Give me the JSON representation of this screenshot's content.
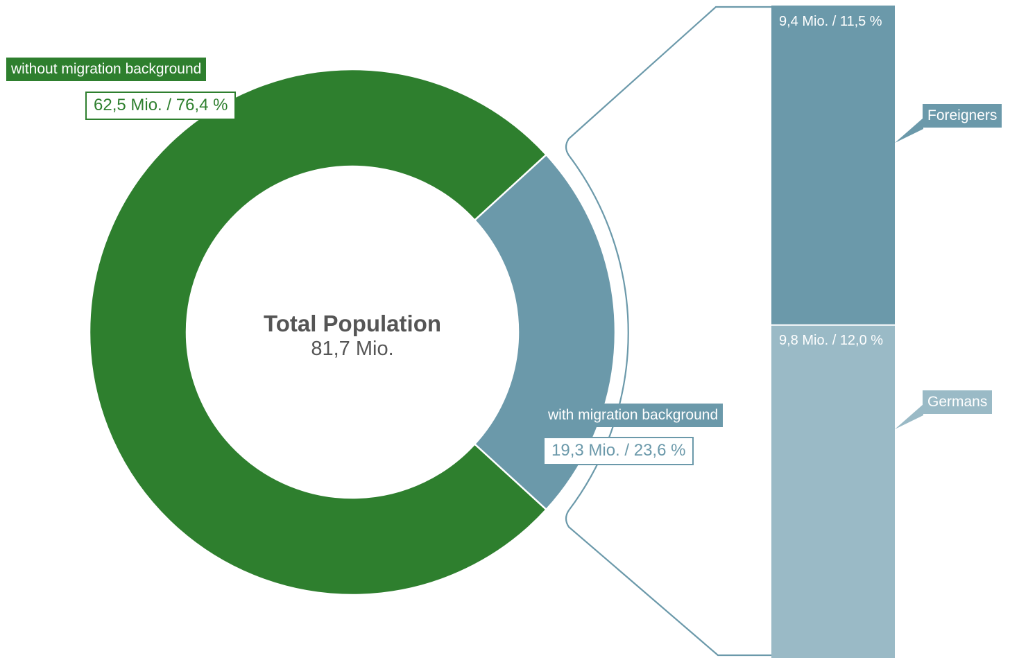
{
  "chart_data": {
    "type": "pie",
    "center_label": {
      "title": "Total Population",
      "value": "81,7 Mio."
    },
    "slices": [
      {
        "label": "without migration background",
        "value": 62.5,
        "percent": 76.4,
        "value_text": "62,5 Mio. / 76,4 %"
      },
      {
        "label": "with migration background",
        "value": 19.3,
        "percent": 23.6,
        "value_text": "19,3 Mio. / 23,6 %"
      }
    ],
    "breakdown": {
      "parent": "with migration background",
      "type": "stacked-bar",
      "segments": [
        {
          "label": "Foreigners",
          "value": 9.4,
          "percent": 11.5,
          "value_text": "9,4 Mio. / 11,5 %"
        },
        {
          "label": "Germans",
          "value": 9.8,
          "percent": 12.0,
          "value_text": "9,8 Mio. / 12,0 %"
        }
      ]
    },
    "colors": {
      "without": "#2e7f2e",
      "with": "#6b99aa",
      "foreigners": "#6b99aa",
      "germans": "#9abac6",
      "bracket": "#6b99aa"
    }
  }
}
